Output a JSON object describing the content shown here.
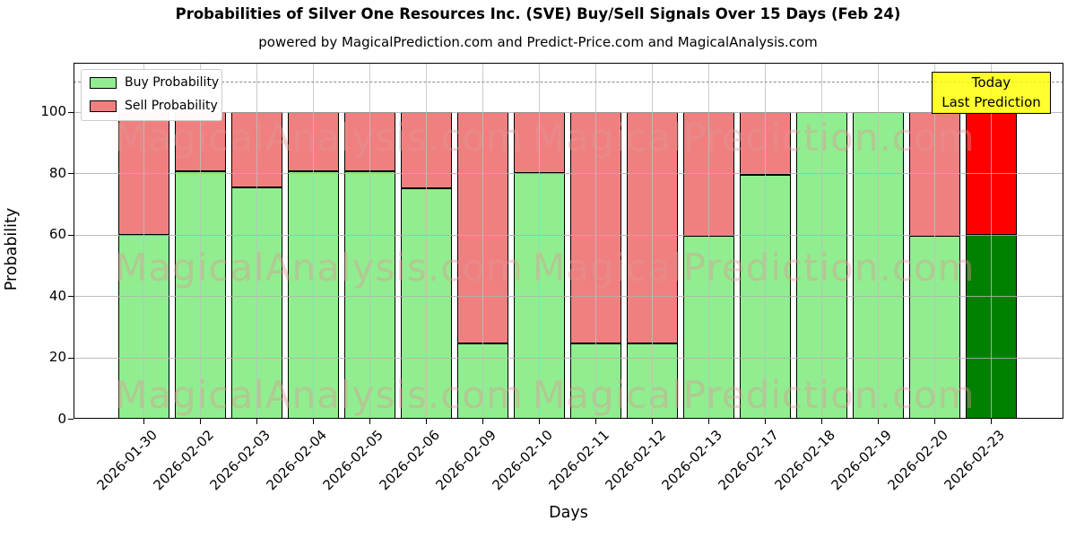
{
  "title": "Probabilities of Silver One Resources Inc. (SVE) Buy/Sell Signals Over 15 Days (Feb 24)",
  "subtitle": "powered by MagicalPrediction.com and Predict-Price.com and MagicalAnalysis.com",
  "axes": {
    "ylabel": "Probability",
    "xlabel": "Days",
    "yticks": [
      0,
      20,
      40,
      60,
      80,
      100
    ],
    "ymax": 116,
    "dashed_line_y": 110,
    "grid_color": "#b0b0b0"
  },
  "legend": {
    "items": [
      {
        "label": "Buy Probability",
        "color": "#90EE90"
      },
      {
        "label": "Sell Probability",
        "color": "#F08080"
      }
    ]
  },
  "annotation": {
    "line1": "Today",
    "line2": "Last Prediction",
    "bg_color": "#FFFF00"
  },
  "watermark": {
    "left_text": "MagicalAnalysis.com",
    "right_text": "MagicalPrediction.com"
  },
  "chart_data": {
    "type": "bar",
    "stacked": true,
    "title": "Probabilities of Silver One Resources Inc. (SVE) Buy/Sell Signals Over 15 Days (Feb 24)",
    "xlabel": "Days",
    "ylabel": "Probability",
    "ylim": [
      0,
      116
    ],
    "legend_position": "upper left",
    "grid": true,
    "categories": [
      "2026-01-30",
      "2026-02-02",
      "2026-02-03",
      "2026-02-04",
      "2026-02-05",
      "2026-02-06",
      "2026-02-09",
      "2026-02-10",
      "2026-02-11",
      "2026-02-12",
      "2026-02-13",
      "2026-02-17",
      "2026-02-18",
      "2026-02-19",
      "2026-02-20",
      "2026-02-23"
    ],
    "series": [
      {
        "name": "Buy Probability",
        "values": [
          60,
          80.5,
          75.5,
          80.5,
          80.5,
          75,
          24.5,
          80,
          24.5,
          24.5,
          59.5,
          79.5,
          100,
          100,
          59.5,
          60
        ]
      },
      {
        "name": "Sell Probability",
        "values": [
          40,
          19.5,
          24.5,
          19.5,
          19.5,
          25,
          75.5,
          20,
          75.5,
          75.5,
          40.5,
          20.5,
          0,
          0,
          40.5,
          40
        ]
      }
    ],
    "colors": {
      "buy": "#90EE90",
      "sell": "#F08080",
      "buy_today": "#008000",
      "sell_today": "#FF0000"
    },
    "today_index": 15
  }
}
